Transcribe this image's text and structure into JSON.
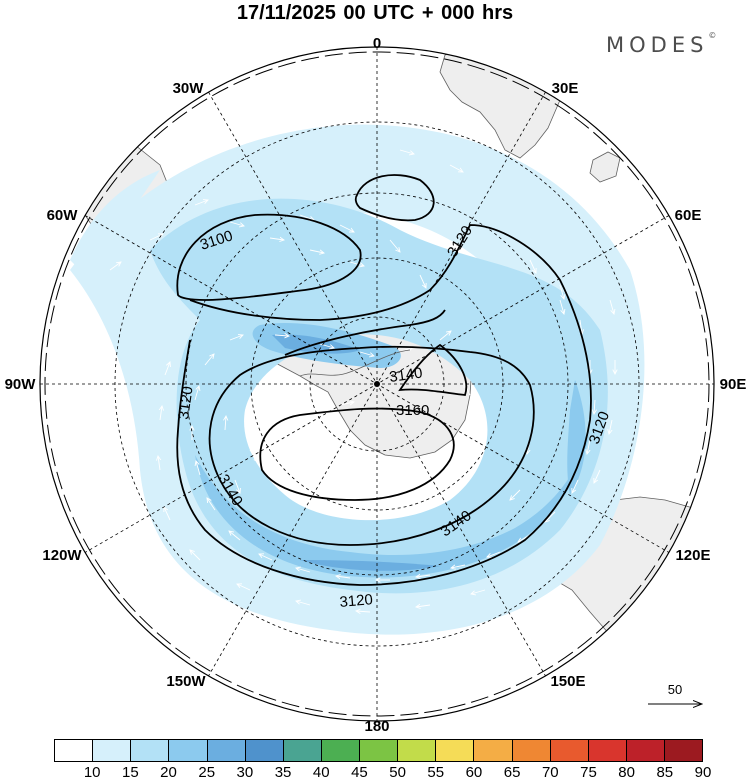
{
  "title": "17/11/2025  00 UTC  + 000 hrs",
  "brand": "MODES",
  "brand_mark": "©",
  "longitude_labels": [
    "0",
    "30E",
    "60E",
    "90E",
    "120E",
    "150E",
    "180",
    "150W",
    "120W",
    "90W",
    "60W",
    "30W"
  ],
  "contour_labels": [
    "3100",
    "3120",
    "3120",
    "3120",
    "3140",
    "3140",
    "3140",
    "3160",
    "3120"
  ],
  "colorbar": {
    "labels": [
      "10",
      "15",
      "20",
      "25",
      "30",
      "35",
      "40",
      "45",
      "50",
      "55",
      "60",
      "65",
      "70",
      "75",
      "80",
      "85",
      "90"
    ],
    "colors": [
      "#ffffff",
      "#d6f0fb",
      "#b3e1f6",
      "#8ccaee",
      "#6baee0",
      "#4f92cc",
      "#4aa492",
      "#4caf52",
      "#7cc444",
      "#c2dc4a",
      "#f5dc57",
      "#f4ad45",
      "#ef8733",
      "#e85a2e",
      "#d9352d",
      "#bd2129",
      "#9c1a20"
    ]
  },
  "reference_vector": {
    "label": "50"
  },
  "colors": {
    "land": "#eeeeee",
    "coast": "#606060",
    "contour": "#000000"
  }
}
